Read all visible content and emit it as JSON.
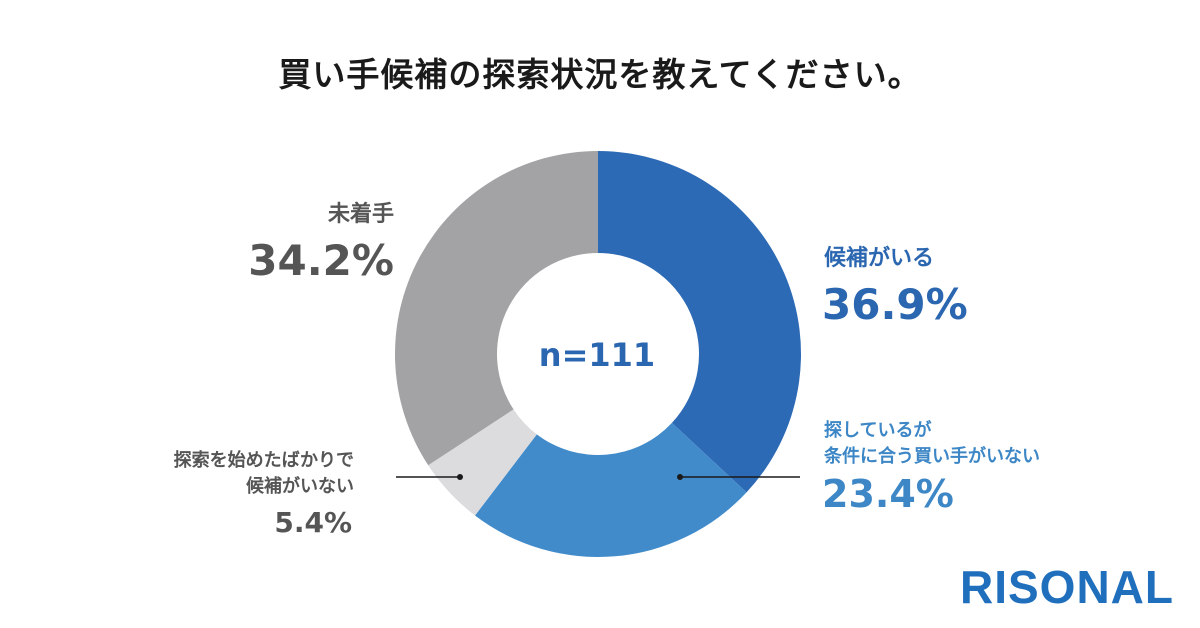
{
  "title": "買い手候補の探索状況を教えてください。",
  "brand": "RISONAL",
  "chart_data": {
    "type": "pie",
    "center_label": "n=111",
    "slices": [
      {
        "label_lines": [
          "候補がいる"
        ],
        "value": 36.9,
        "display": "36.9%",
        "color": "#2d6ab5"
      },
      {
        "label_lines": [
          "探しているが",
          "条件に合う買い手がいない"
        ],
        "value": 23.4,
        "display": "23.4%",
        "color": "#418bcb"
      },
      {
        "label_lines": [
          "探索を始めたばかりで",
          "候補がいない"
        ],
        "value": 5.4,
        "display": "5.4%",
        "color": "#dcdcdf"
      },
      {
        "label_lines": [
          "未着手"
        ],
        "value": 34.2,
        "display": "34.2%",
        "color": "#a3a3a6"
      }
    ]
  }
}
